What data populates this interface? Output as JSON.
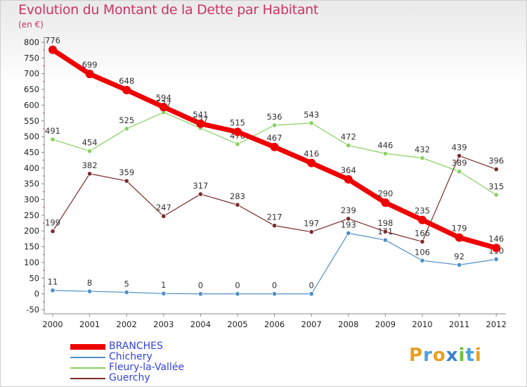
{
  "title": "Evolution du Montant de la Dette par Habitant",
  "unit_label": "(en €)",
  "logo": {
    "letters": [
      "P",
      "r",
      "o",
      "x",
      "i",
      "t",
      "i"
    ],
    "colors": [
      "#e8a020",
      "#4aa0e0",
      "#e8a020",
      "#3a80d0",
      "#70c040",
      "#4aa0e0",
      "#e8a020"
    ]
  },
  "chart_data": {
    "type": "line",
    "title": "Evolution du Montant de la Dette par Habitant",
    "ylabel": "(en €)",
    "xlabel": "",
    "x": [
      "2000",
      "2001",
      "2002",
      "2003",
      "2004",
      "2005",
      "2006",
      "2007",
      "2008",
      "2009",
      "2010",
      "2011",
      "2012"
    ],
    "ylim": [
      -50,
      800
    ],
    "yticks": [
      -50,
      0,
      50,
      100,
      150,
      200,
      250,
      300,
      350,
      400,
      450,
      500,
      550,
      600,
      650,
      700,
      750,
      800
    ],
    "grid": false,
    "legend_position": "bottom-left",
    "series": [
      {
        "name": "Chichery",
        "color": "#4f8fc8",
        "width": 1.2,
        "values": [
          11,
          8,
          5,
          1,
          0,
          0,
          0,
          0,
          193,
          171,
          106,
          92,
          110
        ],
        "labels": [
          "11",
          "8",
          "5",
          "1",
          "0",
          "0",
          "0",
          "0",
          "193",
          "171",
          "106",
          "92",
          "110"
        ]
      },
      {
        "name": "Fleury-la-Vallée",
        "color": "#88d060",
        "width": 1.2,
        "values": [
          491,
          454,
          525,
          577,
          527,
          476,
          536,
          543,
          472,
          446,
          432,
          389,
          315
        ],
        "labels": [
          "491",
          "454",
          "525",
          "577",
          "527",
          "476",
          "536",
          "543",
          "472",
          "446",
          "432",
          "389",
          "315"
        ]
      },
      {
        "name": "Guerchy",
        "color": "#7a2a2a",
        "width": 1.2,
        "values": [
          199,
          382,
          359,
          247,
          317,
          283,
          217,
          197,
          239,
          198,
          166,
          439,
          396
        ],
        "labels": [
          "199",
          "382",
          "359",
          "247",
          "317",
          "283",
          "217",
          "197",
          "239",
          "198",
          "166",
          "439",
          "396"
        ]
      },
      {
        "name": "BRANCHES",
        "color": "#ee0000",
        "width": 7,
        "values": [
          776,
          699,
          648,
          594,
          541,
          515,
          467,
          416,
          364,
          290,
          235,
          179,
          146
        ],
        "labels": [
          "776",
          "699",
          "648",
          "594",
          "541",
          "515",
          "467",
          "416",
          "364",
          "290",
          "235",
          "179",
          "146"
        ]
      }
    ],
    "legend": [
      "BRANCHES",
      "Chichery",
      "Fleury-la-Vallée",
      "Guerchy"
    ]
  }
}
